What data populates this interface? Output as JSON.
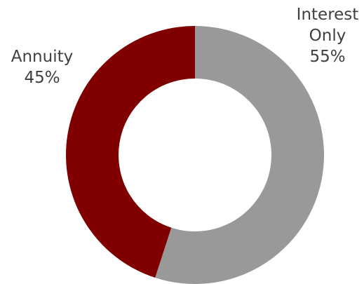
{
  "chart_data": {
    "type": "pie",
    "donut": true,
    "series": [
      {
        "label_lines": [
          "Interest",
          "Only"
        ],
        "value": 55,
        "value_label": "55%",
        "color": "#999999"
      },
      {
        "label_lines": [
          "Annuity"
        ],
        "value": 45,
        "value_label": "45%",
        "color": "#800000"
      }
    ],
    "legend": "none"
  }
}
